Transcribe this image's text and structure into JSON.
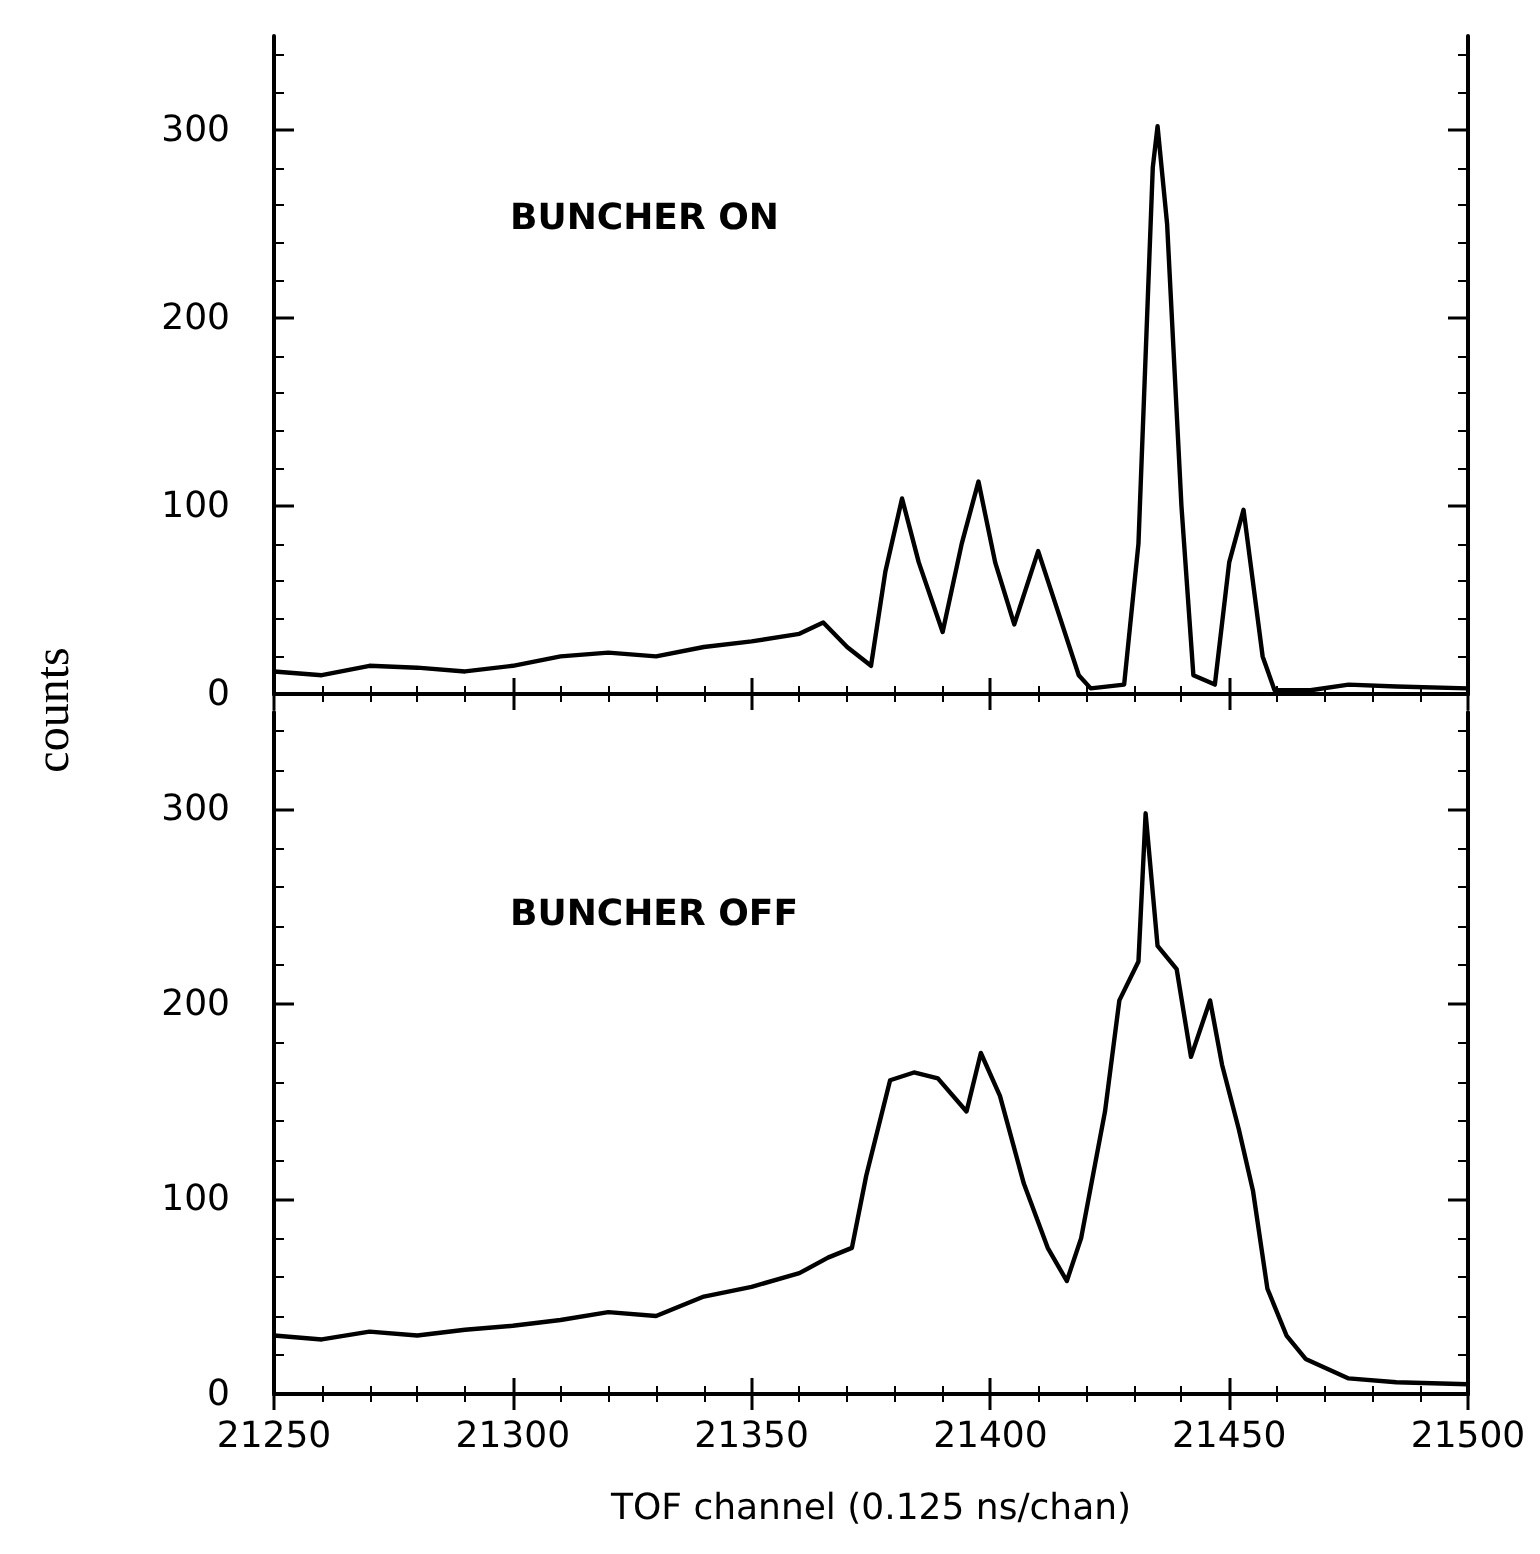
{
  "chart_data": [
    {
      "type": "line",
      "ylabel": "counts",
      "annotations": [
        "BUNCHER ON"
      ],
      "x": [
        21250,
        21260,
        21270,
        21280,
        21290,
        21300,
        21310,
        21320,
        21330,
        21340,
        21350,
        21360,
        21365,
        21370,
        21375,
        21378,
        21381.5,
        21385,
        21390,
        21394,
        21397.5,
        21401,
        21405,
        21410,
        21414,
        21418.5,
        21421,
        21428,
        21431,
        21434,
        21435,
        21437,
        21440,
        21442.5,
        21447,
        21450,
        21453,
        21457,
        21459.5,
        21467,
        21475,
        21485,
        21500
      ],
      "series": [
        {
          "color": "#000000",
          "values": [
            12,
            10,
            15,
            14,
            12,
            15,
            20,
            22,
            20,
            25,
            28,
            32,
            38,
            25,
            15,
            65,
            104,
            70,
            33,
            80,
            113,
            70,
            37,
            76,
            45,
            10,
            3,
            5,
            80,
            280,
            302,
            250,
            100,
            10,
            5,
            70,
            98,
            20,
            2,
            2,
            5,
            4,
            3
          ]
        }
      ],
      "xlim": [
        21250,
        21500
      ],
      "xticks": [
        21250,
        21300,
        21350,
        21400,
        21450,
        21500
      ],
      "ylim": [
        0,
        350
      ],
      "yticks": [
        0,
        100,
        200,
        300
      ],
      "tick_labels": "y",
      "marker": "none",
      "line_style": "solid"
    },
    {
      "type": "line",
      "xlabel": "TOF channel (0.125 ns/chan)",
      "annotations": [
        "BUNCHER OFF"
      ],
      "x": [
        21250,
        21260,
        21270,
        21280,
        21290,
        21300,
        21310,
        21320,
        21330,
        21340,
        21350,
        21360,
        21366,
        21371,
        21374,
        21379,
        21384,
        21389,
        21395,
        21398,
        21402,
        21407,
        21412,
        21416,
        21419,
        21424,
        21427,
        21431,
        21432.5,
        21435,
        21439,
        21442,
        21446,
        21448.5,
        21452,
        21455,
        21458,
        21462,
        21466,
        21475,
        21485,
        21500
      ],
      "series": [
        {
          "color": "#000000",
          "values": [
            30,
            28,
            32,
            30,
            33,
            35,
            38,
            42,
            40,
            50,
            55,
            62,
            70,
            75,
            112,
            161,
            165,
            162,
            145,
            175,
            153,
            108,
            75,
            58,
            80,
            145,
            202,
            222,
            298,
            230,
            218,
            173,
            202,
            169,
            136,
            104,
            54,
            30,
            18,
            8,
            6,
            5
          ]
        }
      ],
      "xlim": [
        21250,
        21500
      ],
      "xticks": [
        21250,
        21300,
        21350,
        21400,
        21450,
        21500
      ],
      "ylim": [
        0,
        350
      ],
      "yticks": [
        0,
        100,
        200,
        300
      ],
      "marker": "none",
      "line_style": "solid"
    }
  ]
}
